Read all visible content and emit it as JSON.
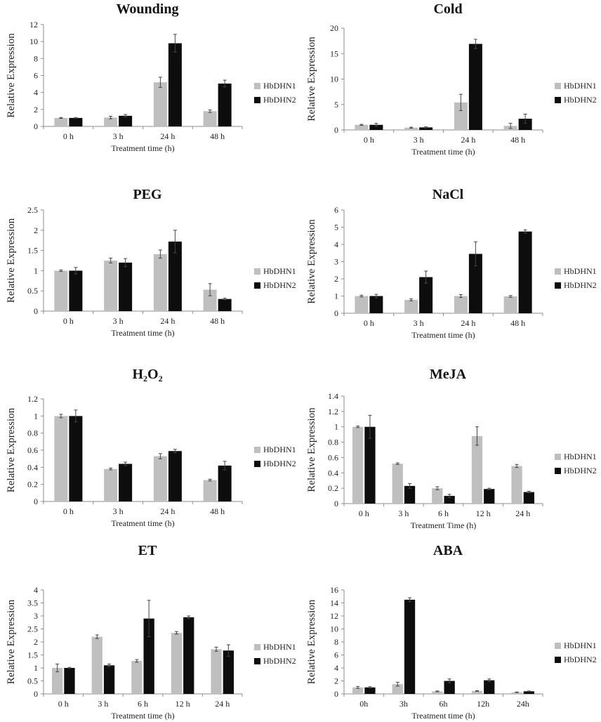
{
  "chart_data": [
    {
      "type": "bar",
      "title": "Wounding",
      "xlabel": "Treatment time (h)",
      "ylabel": "Relative Expression",
      "ylim": [
        0,
        12
      ],
      "yticks": [
        "0",
        "2",
        "4",
        "6",
        "8",
        "10",
        "12"
      ],
      "categories": [
        "0 h",
        "3 h",
        "24 h",
        "48 h"
      ],
      "series": [
        {
          "name": "HbDHN1",
          "color": "#bfbfbf",
          "values": [
            1.0,
            1.05,
            5.2,
            1.8
          ],
          "errors": [
            0.05,
            0.15,
            0.6,
            0.15
          ]
        },
        {
          "name": "HbDHN2",
          "color": "#0d0d0d",
          "values": [
            1.0,
            1.25,
            9.8,
            5.05
          ],
          "errors": [
            0.05,
            0.15,
            1.05,
            0.4
          ]
        }
      ]
    },
    {
      "type": "bar",
      "title": "Cold",
      "xlabel": "Treatment time (h)",
      "ylabel": "Relative Expression",
      "ylim": [
        0,
        20
      ],
      "yticks": [
        "0",
        "5",
        "10",
        "15",
        "20"
      ],
      "categories": [
        "0 h",
        "3 h",
        "24 h",
        "48 h"
      ],
      "series": [
        {
          "name": "HbDHN1",
          "color": "#bfbfbf",
          "values": [
            1.0,
            0.45,
            5.4,
            0.8
          ],
          "errors": [
            0.1,
            0.1,
            1.6,
            0.5
          ]
        },
        {
          "name": "HbDHN2",
          "color": "#0d0d0d",
          "values": [
            1.0,
            0.5,
            16.9,
            2.2
          ],
          "errors": [
            0.3,
            0.1,
            0.9,
            0.9
          ]
        }
      ]
    },
    {
      "type": "bar",
      "title": "PEG",
      "xlabel": "Treatment time (h)",
      "ylabel": "Relative Expression",
      "ylim": [
        0,
        2.5
      ],
      "yticks": [
        "0",
        "0.5",
        "1",
        "1.5",
        "2",
        "2.5"
      ],
      "categories": [
        "0 h",
        "3 h",
        "24 h",
        "48 h"
      ],
      "series": [
        {
          "name": "HbDHN1",
          "color": "#bfbfbf",
          "values": [
            1.0,
            1.25,
            1.41,
            0.53
          ],
          "errors": [
            0.02,
            0.06,
            0.1,
            0.15
          ]
        },
        {
          "name": "HbDHN2",
          "color": "#0d0d0d",
          "values": [
            1.0,
            1.2,
            1.72,
            0.3
          ],
          "errors": [
            0.08,
            0.1,
            0.28,
            0.02
          ]
        }
      ]
    },
    {
      "type": "bar",
      "title": "NaCl",
      "xlabel": "Treatment time (h)",
      "ylabel": "Relative Expression",
      "ylim": [
        0,
        6
      ],
      "yticks": [
        "0",
        "1",
        "2",
        "3",
        "4",
        "5",
        "6"
      ],
      "categories": [
        "0 h",
        "3 h",
        "24 h",
        "48 h"
      ],
      "series": [
        {
          "name": "HbDHN1",
          "color": "#bfbfbf",
          "values": [
            1.0,
            0.78,
            1.0,
            0.98
          ],
          "errors": [
            0.05,
            0.06,
            0.08,
            0.05
          ]
        },
        {
          "name": "HbDHN2",
          "color": "#0d0d0d",
          "values": [
            1.0,
            2.1,
            3.45,
            4.75
          ],
          "errors": [
            0.1,
            0.35,
            0.7,
            0.1
          ]
        }
      ]
    },
    {
      "type": "bar",
      "title_text": "H",
      "title_sub1": "2",
      "title_mid": "O",
      "title_sub2": "2",
      "xlabel": "Treatment time (h)",
      "ylabel": "Relative Expression",
      "ylim": [
        0,
        1.2
      ],
      "yticks": [
        "0",
        "0.2",
        "0.4",
        "0.6",
        "0.8",
        "1",
        "1.2"
      ],
      "categories": [
        "0 h",
        "3 h",
        "24 h",
        "48 h"
      ],
      "series": [
        {
          "name": "HbDHN1",
          "color": "#bfbfbf",
          "values": [
            1.0,
            0.38,
            0.53,
            0.25
          ],
          "errors": [
            0.02,
            0.01,
            0.03,
            0.01
          ]
        },
        {
          "name": "HbDHN2",
          "color": "#0d0d0d",
          "values": [
            1.0,
            0.44,
            0.59,
            0.42
          ],
          "errors": [
            0.07,
            0.02,
            0.02,
            0.05
          ]
        }
      ]
    },
    {
      "type": "bar",
      "title": "MeJA",
      "xlabel": "Treatment Time (h)",
      "ylabel": "Relative Expression",
      "ylim": [
        0,
        1.4
      ],
      "yticks": [
        "0",
        "0.2",
        "0.4",
        "0.6",
        "0.8",
        "1",
        "1.2",
        "1.4"
      ],
      "categories": [
        "0 h",
        "3 h",
        "6 h",
        "12 h",
        "24 h"
      ],
      "series": [
        {
          "name": "HbDHN1",
          "color": "#bfbfbf",
          "values": [
            1.0,
            0.52,
            0.2,
            0.88,
            0.49
          ],
          "errors": [
            0.01,
            0.01,
            0.02,
            0.12,
            0.02
          ]
        },
        {
          "name": "HbDHN2",
          "color": "#0d0d0d",
          "values": [
            1.0,
            0.23,
            0.1,
            0.19,
            0.15
          ],
          "errors": [
            0.15,
            0.03,
            0.02,
            0.01,
            0.01
          ]
        }
      ]
    },
    {
      "type": "bar",
      "title": "ET",
      "xlabel": "Treatment time (h)",
      "ylabel": "Relative Expression",
      "ylim": [
        0,
        4
      ],
      "yticks": [
        "0",
        "0.5",
        "1",
        "1.5",
        "2",
        "2.5",
        "3",
        "3.5",
        "4"
      ],
      "categories": [
        "0 h",
        "3 h",
        "6 h",
        "12 h",
        "24 h"
      ],
      "series": [
        {
          "name": "HbDHN1",
          "color": "#bfbfbf",
          "values": [
            1.0,
            2.2,
            1.27,
            2.35,
            1.72
          ],
          "errors": [
            0.15,
            0.07,
            0.05,
            0.05,
            0.08
          ]
        },
        {
          "name": "HbDHN2",
          "color": "#0d0d0d",
          "values": [
            1.0,
            1.1,
            2.9,
            2.95,
            1.67
          ],
          "errors": [
            0.02,
            0.05,
            0.7,
            0.05,
            0.22
          ]
        }
      ]
    },
    {
      "type": "bar",
      "title": "ABA",
      "xlabel": "Treatment time (h)",
      "ylabel": "Relative Expression",
      "ylim": [
        0,
        16
      ],
      "yticks": [
        "0",
        "2",
        "4",
        "6",
        "8",
        "10",
        "12",
        "14",
        "16"
      ],
      "categories": [
        "0h",
        "3h",
        "6h",
        "12h",
        "24h"
      ],
      "series": [
        {
          "name": "HbDHN1",
          "color": "#bfbfbf",
          "values": [
            1.0,
            1.5,
            0.4,
            0.45,
            0.25
          ],
          "errors": [
            0.15,
            0.3,
            0.05,
            0.05,
            0.05
          ]
        },
        {
          "name": "HbDHN2",
          "color": "#0d0d0d",
          "values": [
            1.0,
            14.5,
            2.0,
            2.1,
            0.4
          ],
          "errors": [
            0.1,
            0.3,
            0.3,
            0.2,
            0.05
          ]
        }
      ]
    }
  ]
}
